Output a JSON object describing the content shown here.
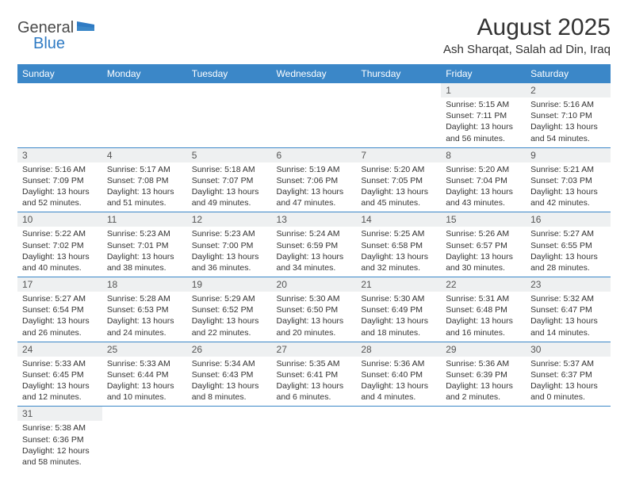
{
  "logo": {
    "text_dark": "General",
    "text_blue": "Blue"
  },
  "title": "August 2025",
  "location": "Ash Sharqat, Salah ad Din, Iraq",
  "colors": {
    "header_bg": "#3b87c8",
    "header_text": "#ffffff",
    "daynum_bg": "#eef0f1",
    "border": "#3b87c8",
    "text": "#333333",
    "logo_blue": "#2f7bc4"
  },
  "day_headers": [
    "Sunday",
    "Monday",
    "Tuesday",
    "Wednesday",
    "Thursday",
    "Friday",
    "Saturday"
  ],
  "weeks": [
    [
      null,
      null,
      null,
      null,
      null,
      {
        "n": "1",
        "sunrise": "5:15 AM",
        "sunset": "7:11 PM",
        "daylight": "13 hours and 56 minutes."
      },
      {
        "n": "2",
        "sunrise": "5:16 AM",
        "sunset": "7:10 PM",
        "daylight": "13 hours and 54 minutes."
      }
    ],
    [
      {
        "n": "3",
        "sunrise": "5:16 AM",
        "sunset": "7:09 PM",
        "daylight": "13 hours and 52 minutes."
      },
      {
        "n": "4",
        "sunrise": "5:17 AM",
        "sunset": "7:08 PM",
        "daylight": "13 hours and 51 minutes."
      },
      {
        "n": "5",
        "sunrise": "5:18 AM",
        "sunset": "7:07 PM",
        "daylight": "13 hours and 49 minutes."
      },
      {
        "n": "6",
        "sunrise": "5:19 AM",
        "sunset": "7:06 PM",
        "daylight": "13 hours and 47 minutes."
      },
      {
        "n": "7",
        "sunrise": "5:20 AM",
        "sunset": "7:05 PM",
        "daylight": "13 hours and 45 minutes."
      },
      {
        "n": "8",
        "sunrise": "5:20 AM",
        "sunset": "7:04 PM",
        "daylight": "13 hours and 43 minutes."
      },
      {
        "n": "9",
        "sunrise": "5:21 AM",
        "sunset": "7:03 PM",
        "daylight": "13 hours and 42 minutes."
      }
    ],
    [
      {
        "n": "10",
        "sunrise": "5:22 AM",
        "sunset": "7:02 PM",
        "daylight": "13 hours and 40 minutes."
      },
      {
        "n": "11",
        "sunrise": "5:23 AM",
        "sunset": "7:01 PM",
        "daylight": "13 hours and 38 minutes."
      },
      {
        "n": "12",
        "sunrise": "5:23 AM",
        "sunset": "7:00 PM",
        "daylight": "13 hours and 36 minutes."
      },
      {
        "n": "13",
        "sunrise": "5:24 AM",
        "sunset": "6:59 PM",
        "daylight": "13 hours and 34 minutes."
      },
      {
        "n": "14",
        "sunrise": "5:25 AM",
        "sunset": "6:58 PM",
        "daylight": "13 hours and 32 minutes."
      },
      {
        "n": "15",
        "sunrise": "5:26 AM",
        "sunset": "6:57 PM",
        "daylight": "13 hours and 30 minutes."
      },
      {
        "n": "16",
        "sunrise": "5:27 AM",
        "sunset": "6:55 PM",
        "daylight": "13 hours and 28 minutes."
      }
    ],
    [
      {
        "n": "17",
        "sunrise": "5:27 AM",
        "sunset": "6:54 PM",
        "daylight": "13 hours and 26 minutes."
      },
      {
        "n": "18",
        "sunrise": "5:28 AM",
        "sunset": "6:53 PM",
        "daylight": "13 hours and 24 minutes."
      },
      {
        "n": "19",
        "sunrise": "5:29 AM",
        "sunset": "6:52 PM",
        "daylight": "13 hours and 22 minutes."
      },
      {
        "n": "20",
        "sunrise": "5:30 AM",
        "sunset": "6:50 PM",
        "daylight": "13 hours and 20 minutes."
      },
      {
        "n": "21",
        "sunrise": "5:30 AM",
        "sunset": "6:49 PM",
        "daylight": "13 hours and 18 minutes."
      },
      {
        "n": "22",
        "sunrise": "5:31 AM",
        "sunset": "6:48 PM",
        "daylight": "13 hours and 16 minutes."
      },
      {
        "n": "23",
        "sunrise": "5:32 AM",
        "sunset": "6:47 PM",
        "daylight": "13 hours and 14 minutes."
      }
    ],
    [
      {
        "n": "24",
        "sunrise": "5:33 AM",
        "sunset": "6:45 PM",
        "daylight": "13 hours and 12 minutes."
      },
      {
        "n": "25",
        "sunrise": "5:33 AM",
        "sunset": "6:44 PM",
        "daylight": "13 hours and 10 minutes."
      },
      {
        "n": "26",
        "sunrise": "5:34 AM",
        "sunset": "6:43 PM",
        "daylight": "13 hours and 8 minutes."
      },
      {
        "n": "27",
        "sunrise": "5:35 AM",
        "sunset": "6:41 PM",
        "daylight": "13 hours and 6 minutes."
      },
      {
        "n": "28",
        "sunrise": "5:36 AM",
        "sunset": "6:40 PM",
        "daylight": "13 hours and 4 minutes."
      },
      {
        "n": "29",
        "sunrise": "5:36 AM",
        "sunset": "6:39 PM",
        "daylight": "13 hours and 2 minutes."
      },
      {
        "n": "30",
        "sunrise": "5:37 AM",
        "sunset": "6:37 PM",
        "daylight": "13 hours and 0 minutes."
      }
    ],
    [
      {
        "n": "31",
        "sunrise": "5:38 AM",
        "sunset": "6:36 PM",
        "daylight": "12 hours and 58 minutes."
      },
      null,
      null,
      null,
      null,
      null,
      null
    ]
  ],
  "labels": {
    "sunrise": "Sunrise:",
    "sunset": "Sunset:",
    "daylight": "Daylight:"
  }
}
